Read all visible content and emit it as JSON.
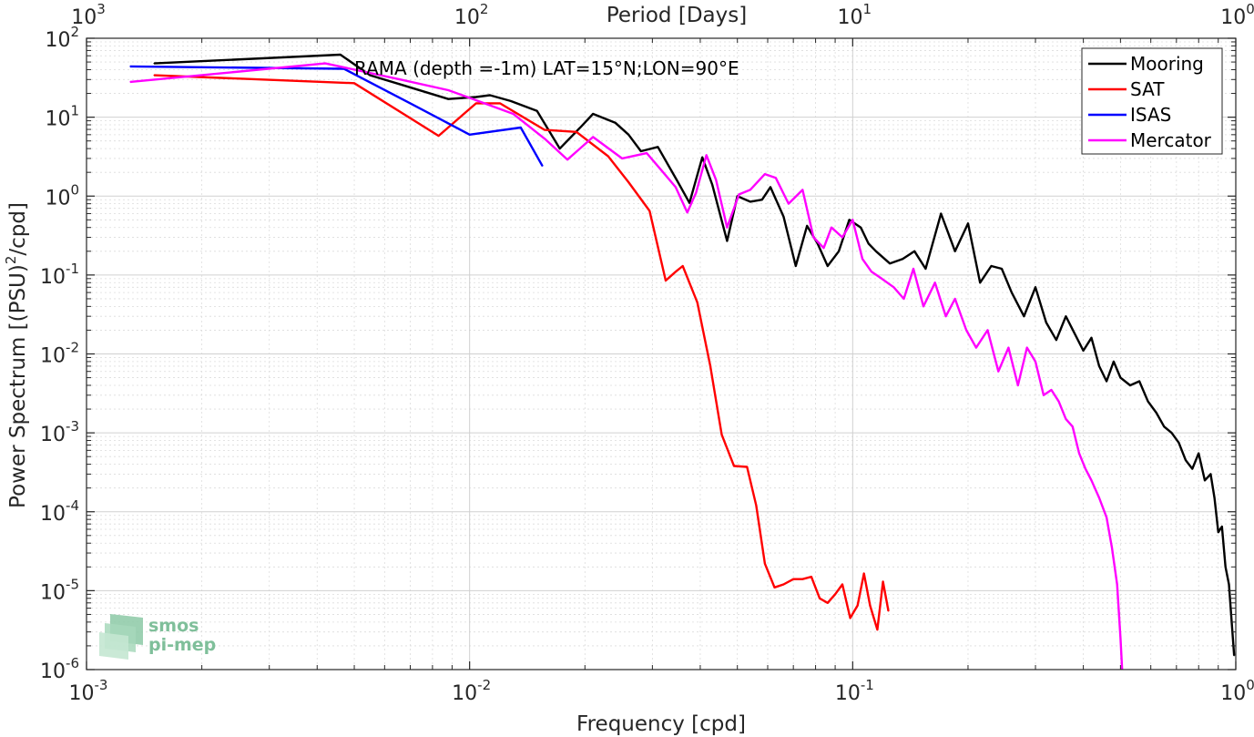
{
  "chart_data": {
    "type": "line",
    "title": "RAMA (depth =-1m) LAT=15°N;LON=90°E",
    "xlabel": "Frequency [cpd]",
    "ylabel_main": "Power Spectrum [(PSU)",
    "ylabel_sup": "2",
    "ylabel_tail": "/cpd]",
    "top_xlabel": "Period [Days]",
    "xscale": "log",
    "yscale": "log",
    "xlim": [
      0.001,
      1
    ],
    "ylim": [
      1e-06,
      100
    ],
    "grid": true,
    "legend_position": "top-right",
    "x_ticks": [
      {
        "base": "10",
        "exp": "-3"
      },
      {
        "base": "10",
        "exp": "-2"
      },
      {
        "base": "10",
        "exp": "-1"
      },
      {
        "base": "10",
        "exp": "0"
      }
    ],
    "y_ticks": [
      {
        "base": "10",
        "exp": "-6"
      },
      {
        "base": "10",
        "exp": "-5"
      },
      {
        "base": "10",
        "exp": "-4"
      },
      {
        "base": "10",
        "exp": "-3"
      },
      {
        "base": "10",
        "exp": "-2"
      },
      {
        "base": "10",
        "exp": "-1"
      },
      {
        "base": "10",
        "exp": "0"
      },
      {
        "base": "10",
        "exp": "1"
      },
      {
        "base": "10",
        "exp": "2"
      }
    ],
    "top_ticks": [
      {
        "base": "10",
        "exp": "3"
      },
      {
        "base": "10",
        "exp": "2"
      },
      {
        "base": "10",
        "exp": "1"
      },
      {
        "base": "10",
        "exp": "0"
      }
    ],
    "series": [
      {
        "name": "Mooring",
        "color": "#000000",
        "points": [
          [
            0.0015,
            48
          ],
          [
            0.0046,
            62
          ],
          [
            0.0055,
            34
          ],
          [
            0.0066,
            26
          ],
          [
            0.0088,
            17
          ],
          [
            0.0104,
            18
          ],
          [
            0.0113,
            19
          ],
          [
            0.0128,
            16
          ],
          [
            0.015,
            12
          ],
          [
            0.0172,
            4.0
          ],
          [
            0.0195,
            7.5
          ],
          [
            0.021,
            11
          ],
          [
            0.024,
            8.5
          ],
          [
            0.026,
            6.0
          ],
          [
            0.028,
            3.7
          ],
          [
            0.031,
            4.2
          ],
          [
            0.035,
            1.5
          ],
          [
            0.0375,
            0.82
          ],
          [
            0.0405,
            3.1
          ],
          [
            0.043,
            1.4
          ],
          [
            0.047,
            0.27
          ],
          [
            0.05,
            1.0
          ],
          [
            0.054,
            0.85
          ],
          [
            0.058,
            0.9
          ],
          [
            0.061,
            1.3
          ],
          [
            0.066,
            0.55
          ],
          [
            0.071,
            0.13
          ],
          [
            0.076,
            0.42
          ],
          [
            0.081,
            0.25
          ],
          [
            0.086,
            0.13
          ],
          [
            0.092,
            0.2
          ],
          [
            0.098,
            0.5
          ],
          [
            0.105,
            0.4
          ],
          [
            0.11,
            0.25
          ],
          [
            0.115,
            0.2
          ],
          [
            0.125,
            0.14
          ],
          [
            0.135,
            0.16
          ],
          [
            0.145,
            0.2
          ],
          [
            0.155,
            0.12
          ],
          [
            0.17,
            0.6
          ],
          [
            0.185,
            0.2
          ],
          [
            0.2,
            0.45
          ],
          [
            0.215,
            0.08
          ],
          [
            0.23,
            0.13
          ],
          [
            0.245,
            0.12
          ],
          [
            0.26,
            0.06
          ],
          [
            0.28,
            0.03
          ],
          [
            0.3,
            0.07
          ],
          [
            0.32,
            0.025
          ],
          [
            0.34,
            0.015
          ],
          [
            0.36,
            0.03
          ],
          [
            0.38,
            0.018
          ],
          [
            0.4,
            0.011
          ],
          [
            0.42,
            0.016
          ],
          [
            0.44,
            0.007
          ],
          [
            0.46,
            0.0045
          ],
          [
            0.48,
            0.008
          ],
          [
            0.5,
            0.005
          ],
          [
            0.53,
            0.004
          ],
          [
            0.56,
            0.0045
          ],
          [
            0.59,
            0.0025
          ],
          [
            0.62,
            0.0018
          ],
          [
            0.65,
            0.0012
          ],
          [
            0.68,
            0.001
          ],
          [
            0.71,
            0.00075
          ],
          [
            0.74,
            0.00045
          ],
          [
            0.77,
            0.00035
          ],
          [
            0.8,
            0.00055
          ],
          [
            0.83,
            0.00025
          ],
          [
            0.86,
            0.0003
          ],
          [
            0.88,
            0.00015
          ],
          [
            0.9,
            5.5e-05
          ],
          [
            0.92,
            6.5e-05
          ],
          [
            0.94,
            2e-05
          ],
          [
            0.96,
            1.2e-05
          ],
          [
            0.98,
            3e-06
          ],
          [
            0.99,
            1.5e-06
          ]
        ]
      },
      {
        "name": "SAT",
        "color": "#ff0000",
        "points": [
          [
            0.0015,
            34
          ],
          [
            0.005,
            27
          ],
          [
            0.0083,
            5.8
          ],
          [
            0.0104,
            15
          ],
          [
            0.012,
            15
          ],
          [
            0.0157,
            6.9
          ],
          [
            0.019,
            6.5
          ],
          [
            0.023,
            3.2
          ],
          [
            0.026,
            1.5
          ],
          [
            0.0295,
            0.65
          ],
          [
            0.0325,
            0.085
          ],
          [
            0.0345,
            0.11
          ],
          [
            0.036,
            0.13
          ],
          [
            0.0393,
            0.045
          ],
          [
            0.0425,
            0.007
          ],
          [
            0.0455,
            0.00095
          ],
          [
            0.049,
            0.00038
          ],
          [
            0.053,
            0.00037
          ],
          [
            0.056,
            0.00012
          ],
          [
            0.059,
            2.2e-05
          ],
          [
            0.0625,
            1.1e-05
          ],
          [
            0.066,
            1.2e-05
          ],
          [
            0.07,
            1.4e-05
          ],
          [
            0.074,
            1.4e-05
          ],
          [
            0.078,
            1.5e-05
          ],
          [
            0.082,
            8e-06
          ],
          [
            0.086,
            7e-06
          ],
          [
            0.09,
            9e-06
          ],
          [
            0.094,
            1.2e-05
          ],
          [
            0.0985,
            4.5e-06
          ],
          [
            0.103,
            6.5e-06
          ],
          [
            0.107,
            1.65e-05
          ],
          [
            0.111,
            6.5e-06
          ],
          [
            0.116,
            3.2e-06
          ],
          [
            0.12,
            1.3e-05
          ],
          [
            0.124,
            5.5e-06
          ]
        ]
      },
      {
        "name": "ISAS",
        "color": "#0000ff",
        "points": [
          [
            0.0013,
            44
          ],
          [
            0.0047,
            41
          ],
          [
            0.007,
            15
          ],
          [
            0.01,
            6.0
          ],
          [
            0.0136,
            7.4
          ],
          [
            0.0155,
            2.4
          ]
        ]
      },
      {
        "name": "Mercator",
        "color": "#ff00ff",
        "points": [
          [
            0.0013,
            28
          ],
          [
            0.0042,
            48
          ],
          [
            0.0066,
            30
          ],
          [
            0.0088,
            22
          ],
          [
            0.0102,
            17
          ],
          [
            0.013,
            11
          ],
          [
            0.0158,
            5.2
          ],
          [
            0.018,
            2.9
          ],
          [
            0.021,
            5.6
          ],
          [
            0.025,
            3.0
          ],
          [
            0.029,
            3.5
          ],
          [
            0.032,
            2.0
          ],
          [
            0.0345,
            1.3
          ],
          [
            0.037,
            0.62
          ],
          [
            0.039,
            1.1
          ],
          [
            0.0415,
            3.3
          ],
          [
            0.044,
            1.6
          ],
          [
            0.047,
            0.4
          ],
          [
            0.0505,
            1.05
          ],
          [
            0.054,
            1.2
          ],
          [
            0.059,
            1.9
          ],
          [
            0.063,
            1.7
          ],
          [
            0.068,
            0.8
          ],
          [
            0.074,
            1.2
          ],
          [
            0.079,
            0.3
          ],
          [
            0.084,
            0.22
          ],
          [
            0.088,
            0.4
          ],
          [
            0.094,
            0.3
          ],
          [
            0.1,
            0.5
          ],
          [
            0.106,
            0.16
          ],
          [
            0.112,
            0.11
          ],
          [
            0.119,
            0.09
          ],
          [
            0.128,
            0.07
          ],
          [
            0.136,
            0.05
          ],
          [
            0.144,
            0.12
          ],
          [
            0.153,
            0.04
          ],
          [
            0.164,
            0.08
          ],
          [
            0.175,
            0.03
          ],
          [
            0.185,
            0.05
          ],
          [
            0.198,
            0.02
          ],
          [
            0.21,
            0.012
          ],
          [
            0.225,
            0.02
          ],
          [
            0.24,
            0.006
          ],
          [
            0.255,
            0.012
          ],
          [
            0.27,
            0.004
          ],
          [
            0.285,
            0.012
          ],
          [
            0.3,
            0.008
          ],
          [
            0.315,
            0.003
          ],
          [
            0.33,
            0.0035
          ],
          [
            0.345,
            0.0025
          ],
          [
            0.36,
            0.0015
          ],
          [
            0.375,
            0.0012
          ],
          [
            0.39,
            0.00055
          ],
          [
            0.405,
            0.00035
          ],
          [
            0.42,
            0.00025
          ],
          [
            0.44,
            0.00015
          ],
          [
            0.46,
            8.5e-05
          ],
          [
            0.475,
            3.5e-05
          ],
          [
            0.49,
            1.2e-05
          ],
          [
            0.5,
            2.5e-06
          ],
          [
            0.505,
            1e-06
          ]
        ]
      }
    ]
  },
  "logo": {
    "line1": "smos",
    "line2": "pi-mep"
  }
}
